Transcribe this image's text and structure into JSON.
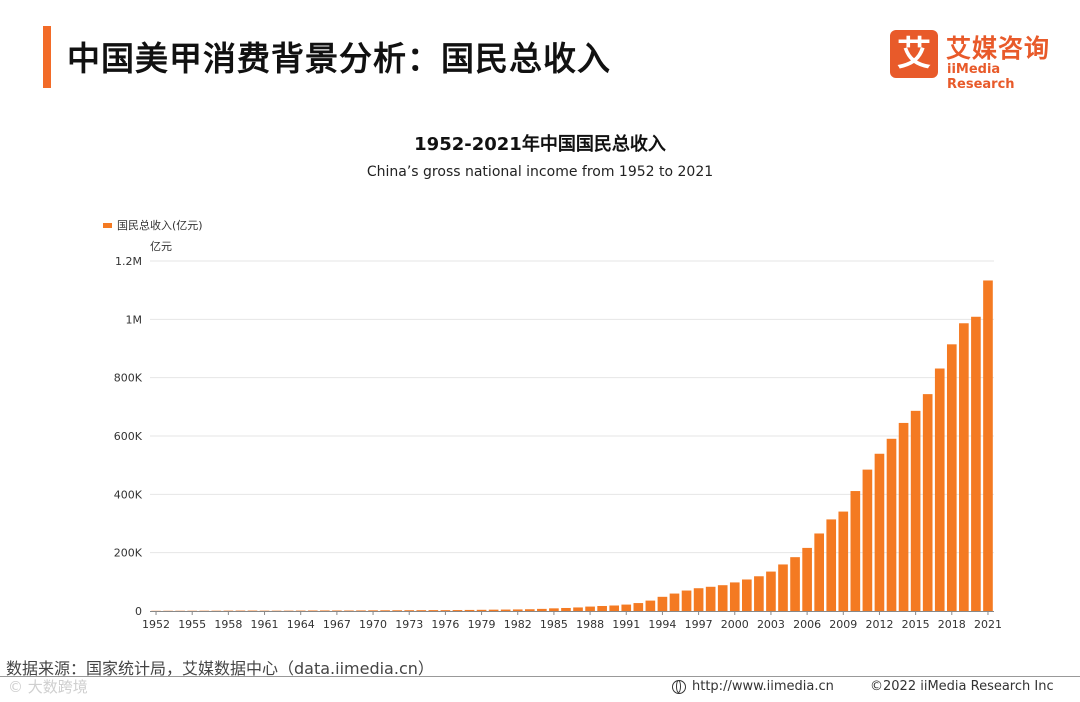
{
  "header": {
    "page_title": "中国美甲消费背景分析：国民总收入",
    "logo_mark": "艾",
    "logo_cn": "艾媒咨询",
    "logo_en": "iiMedia Research"
  },
  "footer": {
    "source": "数据来源：国家统计局，艾媒数据中心（data.iimedia.cn）",
    "url": "http://www.iimedia.cn",
    "copyright": "©2022  iiMedia Research  Inc",
    "watermark": "© 大数跨境"
  },
  "colors": {
    "accent": "#f26b28",
    "bar": "#f47a22",
    "brand": "#e85a2a"
  },
  "chart_data": {
    "type": "bar",
    "title": "1952-2021年中国国民总收入",
    "subtitle": "China’s gross national income from 1952 to 2021",
    "ylabel": "亿元",
    "ylim": [
      0,
      1200000
    ],
    "grid": true,
    "legend_position": "top-left",
    "yticks": [
      {
        "value": 0,
        "label": "0"
      },
      {
        "value": 200000,
        "label": "200K"
      },
      {
        "value": 400000,
        "label": "400K"
      },
      {
        "value": 600000,
        "label": "600K"
      },
      {
        "value": 800000,
        "label": "800K"
      },
      {
        "value": 1000000,
        "label": "1M"
      },
      {
        "value": 1200000,
        "label": "1.2M"
      }
    ],
    "xtick_labels": [
      "1952",
      "1955",
      "1958",
      "1961",
      "1964",
      "1967",
      "1970",
      "1973",
      "1976",
      "1979",
      "1982",
      "1985",
      "1988",
      "1991",
      "1994",
      "1997",
      "2000",
      "2003",
      "2006",
      "2009",
      "2012",
      "2015",
      "2018",
      "2021"
    ],
    "categories": [
      "1952",
      "1953",
      "1954",
      "1955",
      "1956",
      "1957",
      "1958",
      "1959",
      "1960",
      "1961",
      "1962",
      "1963",
      "1964",
      "1965",
      "1966",
      "1967",
      "1968",
      "1969",
      "1970",
      "1971",
      "1972",
      "1973",
      "1974",
      "1975",
      "1976",
      "1977",
      "1978",
      "1979",
      "1980",
      "1981",
      "1982",
      "1983",
      "1984",
      "1985",
      "1986",
      "1987",
      "1988",
      "1989",
      "1990",
      "1991",
      "1992",
      "1993",
      "1994",
      "1995",
      "1996",
      "1997",
      "1998",
      "1999",
      "2000",
      "2001",
      "2002",
      "2003",
      "2004",
      "2005",
      "2006",
      "2007",
      "2008",
      "2009",
      "2010",
      "2011",
      "2012",
      "2013",
      "2014",
      "2015",
      "2016",
      "2017",
      "2018",
      "2019",
      "2020",
      "2021"
    ],
    "series": [
      {
        "name": "国民总收入(亿元)",
        "values": [
          679,
          824,
          859,
          910,
          1028,
          1068,
          1307,
          1439,
          1457,
          1220,
          1149,
          1233,
          1454,
          1716,
          1868,
          1773,
          1723,
          1937,
          2252,
          2426,
          2518,
          2720,
          2789,
          2997,
          2943,
          3201,
          3679,
          4101,
          4588,
          4933,
          5380,
          6021,
          7279,
          9099,
          10376,
          12175,
          15180,
          17180,
          18873,
          22006,
          27195,
          35673,
          48638,
          59811,
          70142,
          78061,
          83024,
          88479,
          98000,
          108068,
          119096,
          135174,
          159587,
          184575,
          216314,
          265810,
          314045,
          340903,
          411265,
          484753,
          539117,
          590422,
          644791,
          686256,
          743585,
          831381,
          914327,
          986515,
          1008782,
          1133239
        ]
      }
    ]
  }
}
